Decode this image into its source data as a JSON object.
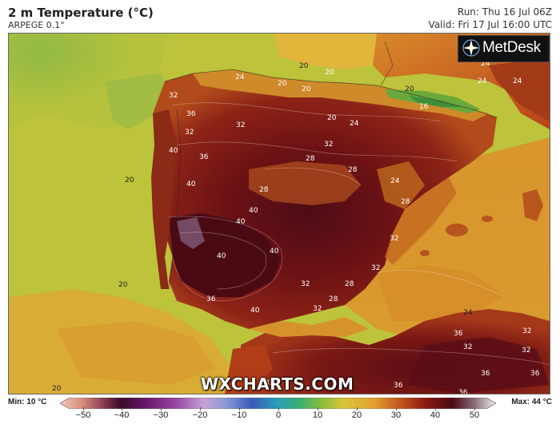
{
  "header": {
    "title": "2 m Temperature (°C)",
    "model": "ARPEGE 0.1°",
    "run": "Run: Thu 16 Jul 06Z",
    "valid": "Valid: Fri 17 Jul 16:00 UTC"
  },
  "logo": {
    "text": "MetDesk"
  },
  "watermark": "WXCHARTS.COM",
  "legend": {
    "min": "Min: 10 °C",
    "max": "Max: 44 °C",
    "ticks": [
      "−50",
      "−40",
      "−30",
      "−20",
      "−10",
      "0",
      "10",
      "20",
      "30",
      "40",
      "50"
    ],
    "colors": {
      "ocean": "#c3c73a",
      "atlantic_green": "#8db848",
      "hot_land": "#7a1414",
      "very_hot": "#4a0a14",
      "warm": "#d9902c",
      "mild": "#e2b838"
    }
  },
  "map": {
    "contour_labels": [
      "24",
      "20",
      "20",
      "20",
      "20",
      "16",
      "24",
      "32",
      "36",
      "32",
      "20",
      "32",
      "24",
      "32",
      "40",
      "36",
      "28",
      "28",
      "20",
      "40",
      "28",
      "24",
      "28",
      "40",
      "40",
      "40",
      "32",
      "40",
      "32",
      "20",
      "36",
      "32",
      "28",
      "40",
      "32",
      "24",
      "36",
      "32",
      "32",
      "32",
      "36",
      "36",
      "36",
      "20",
      "24",
      "24",
      "28",
      "20",
      "36",
      "32"
    ]
  }
}
